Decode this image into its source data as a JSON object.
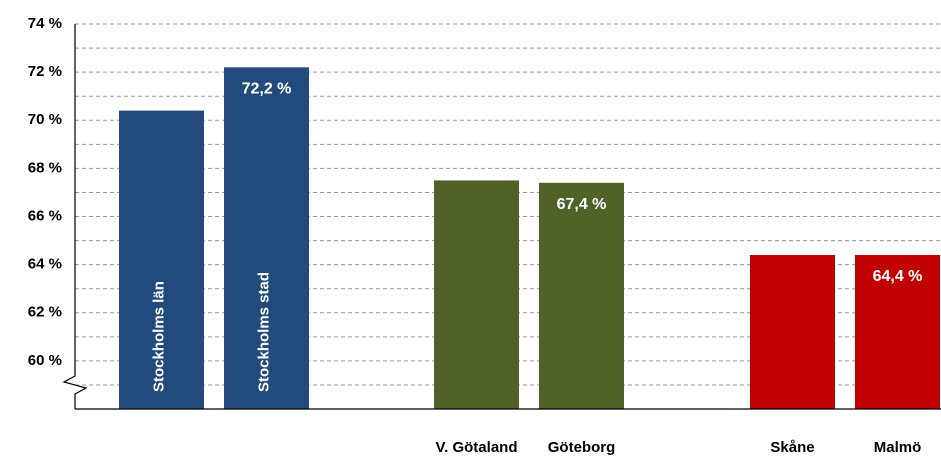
{
  "chart_data": {
    "type": "bar",
    "categories": [
      "Stockholms län",
      "Stockholms stad",
      "V. Götaland",
      "Göteborg",
      "Skåne",
      "Malmö"
    ],
    "values": [
      70.4,
      72.2,
      67.5,
      67.4,
      64.4,
      64.4
    ],
    "value_labels": [
      null,
      "72,2 %",
      null,
      "67,4 %",
      null,
      "64,4 %"
    ],
    "colors": [
      "#234a7c",
      "#234a7c",
      "#4f6228",
      "#4f6228",
      "#c00000",
      "#c00000"
    ],
    "label_inside": [
      true,
      true,
      false,
      false,
      false,
      false
    ],
    "ylim": [
      58,
      74
    ],
    "yticks": [
      {
        "value": 60,
        "label": "60 %"
      },
      {
        "value": 62,
        "label": "62 %"
      },
      {
        "value": 64,
        "label": "64 %"
      },
      {
        "value": 66,
        "label": "66 %"
      },
      {
        "value": 68,
        "label": "68 %"
      },
      {
        "value": 70,
        "label": "70 %"
      },
      {
        "value": 72,
        "label": "72 %"
      },
      {
        "value": 74,
        "label": "74 %"
      }
    ],
    "yminorticks": [
      59,
      61,
      63,
      65,
      67,
      69,
      71,
      73
    ],
    "grid": true
  }
}
